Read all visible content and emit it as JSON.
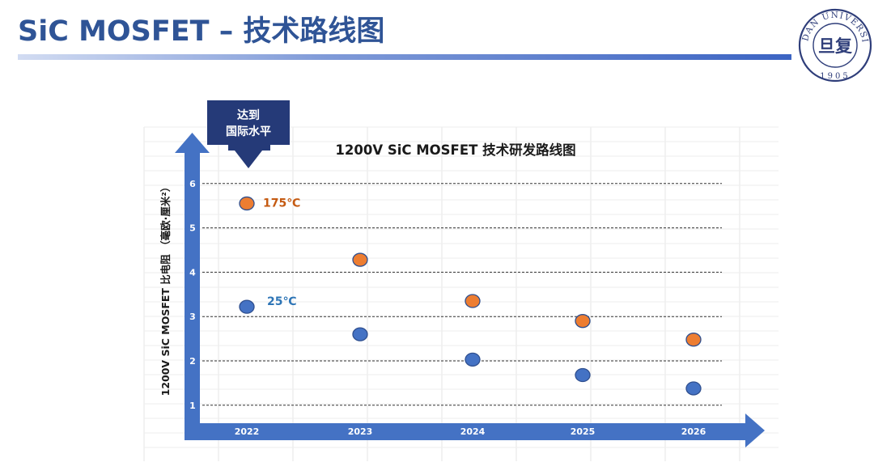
{
  "header": {
    "title": "SiC MOSFET – 技术路线图",
    "logo": {
      "ring_text": "FUDAN UNIVERSITY",
      "year": "1905",
      "emblem_text": "旦复",
      "color": "#2f3e7a"
    }
  },
  "callout": {
    "line1": "达到",
    "line2": "国际水平",
    "color": "#253a78"
  },
  "chart_data": {
    "type": "scatter",
    "title": "1200V SiC MOSFET 技术研发路线图",
    "xlabel": "",
    "ylabel": "1200V SiC MOSFET 比电阻 （毫欧·厘米²）",
    "categories": [
      "2022",
      "2023",
      "2024",
      "2025",
      "2026"
    ],
    "yticks": [
      "1",
      "2",
      "3",
      "4",
      "5",
      "6"
    ],
    "ylim": [
      0.5,
      6.5
    ],
    "grid": "horizontal-dashed",
    "series": [
      {
        "name": "175℃",
        "color": "#ed7d31",
        "values": [
          5.55,
          4.28,
          3.35,
          2.9,
          2.48
        ]
      },
      {
        "name": "25℃",
        "color": "#4472c4",
        "values": [
          3.22,
          2.6,
          2.03,
          1.68,
          1.38
        ]
      }
    ],
    "axis_color": "#4472c4",
    "label_colors": {
      "175℃": "#c55a11",
      "25℃": "#2e75b6"
    }
  }
}
